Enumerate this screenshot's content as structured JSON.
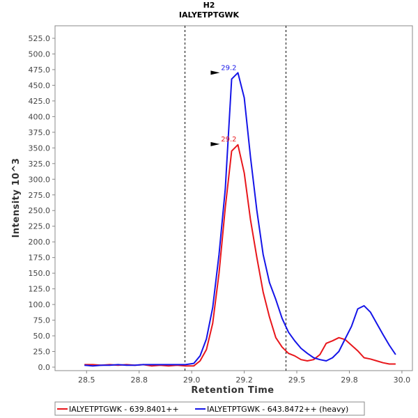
{
  "chart_data": {
    "type": "line",
    "title": "H2",
    "subtitle": "IALYETPTGWK",
    "xlabel": "Retention Time",
    "ylabel": "Intensity 10^3",
    "xlim": [
      28.35,
      30.05
    ],
    "ylim": [
      0,
      545
    ],
    "x_ticks": [
      "28.5",
      "28.8",
      "29.0",
      "29.2",
      "29.5",
      "29.8",
      "30.0"
    ],
    "x_tick_values": [
      28.5,
      28.75,
      29.0,
      29.25,
      29.5,
      29.75,
      30.0
    ],
    "y_ticks": [
      "0.0",
      "25.0",
      "50.0",
      "75.0",
      "100.0",
      "125.0",
      "150.0",
      "175.0",
      "200.0",
      "225.0",
      "250.0",
      "275.0",
      "300.0",
      "325.0",
      "350.0",
      "375.0",
      "400.0",
      "425.0",
      "450.0",
      "475.0",
      "500.0",
      "525.0"
    ],
    "y_tick_values": [
      0,
      25,
      50,
      75,
      100,
      125,
      150,
      175,
      200,
      225,
      250,
      275,
      300,
      325,
      350,
      375,
      400,
      425,
      450,
      475,
      500,
      525
    ],
    "vlines": [
      28.966,
      29.446
    ],
    "grid": false,
    "legend_position": "bottom",
    "series": [
      {
        "name": "IALYETPTGWK - 639.8401++",
        "color": "#e8161b",
        "x": [
          28.49,
          28.53,
          28.57,
          28.61,
          28.65,
          28.69,
          28.73,
          28.77,
          28.81,
          28.85,
          28.89,
          28.93,
          28.97,
          29.01,
          29.04,
          29.07,
          29.1,
          29.13,
          29.16,
          29.19,
          29.22,
          29.25,
          29.28,
          29.31,
          29.34,
          29.37,
          29.4,
          29.43,
          29.46,
          29.49,
          29.52,
          29.55,
          29.58,
          29.61,
          29.64,
          29.67,
          29.7,
          29.73,
          29.76,
          29.79,
          29.82,
          29.85,
          29.88,
          29.91,
          29.94,
          29.97
        ],
        "y": [
          4,
          4,
          3,
          4,
          3,
          4,
          3,
          4,
          2,
          3,
          2,
          3,
          2,
          2,
          10,
          28,
          70,
          150,
          255,
          345,
          355,
          310,
          235,
          175,
          120,
          80,
          47,
          32,
          22,
          18,
          12,
          10,
          12,
          20,
          38,
          42,
          47,
          44,
          35,
          26,
          15,
          13,
          10,
          7,
          5,
          5
        ]
      },
      {
        "name": "IALYETPTGWK - 643.8472++ (heavy)",
        "color": "#1414e8",
        "x": [
          28.49,
          28.53,
          28.57,
          28.61,
          28.65,
          28.69,
          28.73,
          28.77,
          28.81,
          28.85,
          28.89,
          28.93,
          28.97,
          29.01,
          29.04,
          29.07,
          29.1,
          29.13,
          29.16,
          29.19,
          29.22,
          29.25,
          29.28,
          29.31,
          29.34,
          29.37,
          29.4,
          29.43,
          29.46,
          29.49,
          29.52,
          29.55,
          29.58,
          29.61,
          29.64,
          29.67,
          29.7,
          29.73,
          29.76,
          29.79,
          29.82,
          29.85,
          29.88,
          29.91,
          29.94,
          29.97
        ],
        "y": [
          3,
          2,
          3,
          3,
          4,
          3,
          3,
          4,
          4,
          4,
          4,
          4,
          4,
          6,
          18,
          45,
          95,
          180,
          285,
          460,
          470,
          430,
          335,
          250,
          180,
          135,
          108,
          78,
          56,
          42,
          30,
          22,
          15,
          12,
          10,
          15,
          25,
          45,
          65,
          93,
          98,
          88,
          70,
          52,
          35,
          20
        ]
      }
    ],
    "peak_markers": [
      {
        "series": 1,
        "x": 29.16,
        "y": 470,
        "label": "29.2"
      },
      {
        "series": 0,
        "x": 29.16,
        "y": 356,
        "label": "29.2"
      }
    ]
  }
}
